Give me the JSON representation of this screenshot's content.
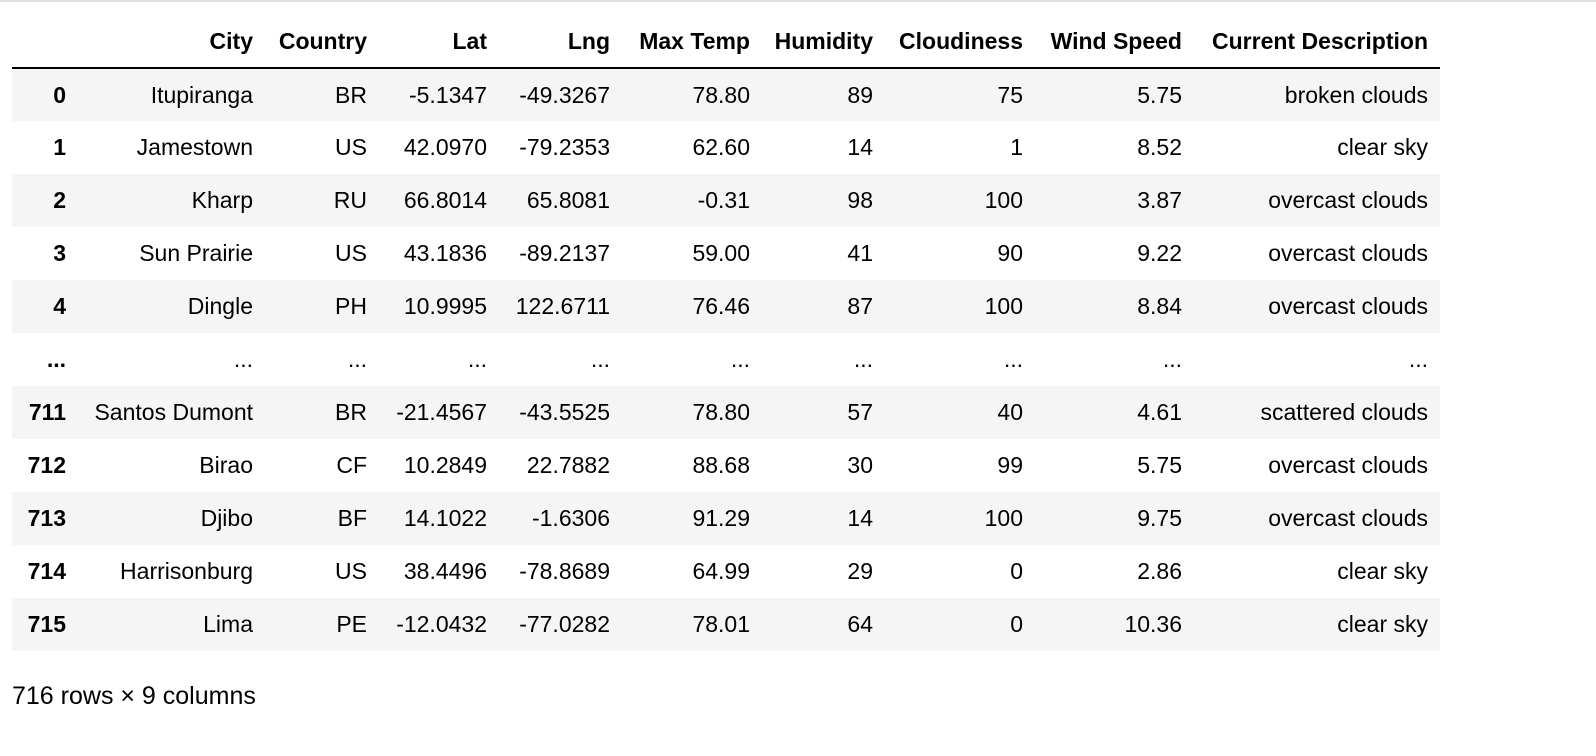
{
  "table": {
    "columns": [
      "",
      "City",
      "Country",
      "Lat",
      "Lng",
      "Max Temp",
      "Humidity",
      "Cloudiness",
      "Wind Speed",
      "Current Description"
    ],
    "rows": [
      [
        "0",
        "Itupiranga",
        "BR",
        "-5.1347",
        "-49.3267",
        "78.80",
        "89",
        "75",
        "5.75",
        "broken clouds"
      ],
      [
        "1",
        "Jamestown",
        "US",
        "42.0970",
        "-79.2353",
        "62.60",
        "14",
        "1",
        "8.52",
        "clear sky"
      ],
      [
        "2",
        "Kharp",
        "RU",
        "66.8014",
        "65.8081",
        "-0.31",
        "98",
        "100",
        "3.87",
        "overcast clouds"
      ],
      [
        "3",
        "Sun Prairie",
        "US",
        "43.1836",
        "-89.2137",
        "59.00",
        "41",
        "90",
        "9.22",
        "overcast clouds"
      ],
      [
        "4",
        "Dingle",
        "PH",
        "10.9995",
        "122.6711",
        "76.46",
        "87",
        "100",
        "8.84",
        "overcast clouds"
      ],
      [
        "...",
        "...",
        "...",
        "...",
        "...",
        "...",
        "...",
        "...",
        "...",
        "..."
      ],
      [
        "711",
        "Santos Dumont",
        "BR",
        "-21.4567",
        "-43.5525",
        "78.80",
        "57",
        "40",
        "4.61",
        "scattered clouds"
      ],
      [
        "712",
        "Birao",
        "CF",
        "10.2849",
        "22.7882",
        "88.68",
        "30",
        "99",
        "5.75",
        "overcast clouds"
      ],
      [
        "713",
        "Djibo",
        "BF",
        "14.1022",
        "-1.6306",
        "91.29",
        "14",
        "100",
        "9.75",
        "overcast clouds"
      ],
      [
        "714",
        "Harrisonburg",
        "US",
        "38.4496",
        "-78.8689",
        "64.99",
        "29",
        "0",
        "2.86",
        "clear sky"
      ],
      [
        "715",
        "Lima",
        "PE",
        "-12.0432",
        "-77.0282",
        "78.01",
        "64",
        "0",
        "10.36",
        "clear sky"
      ]
    ]
  },
  "footer": {
    "shape_text": "716 rows × 9 columns"
  }
}
